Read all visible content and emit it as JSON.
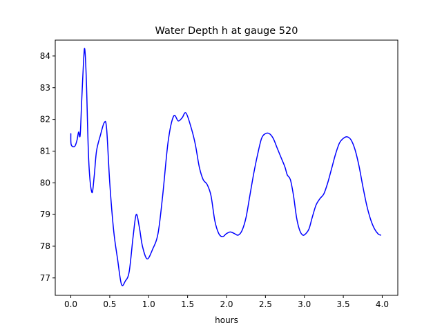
{
  "chart_data": {
    "type": "line",
    "title": "Water Depth h at gauge 520",
    "xlabel": "hours",
    "ylabel": "",
    "xlim": [
      -0.2,
      4.2
    ],
    "ylim": [
      76.45,
      84.5
    ],
    "xticks": [
      0.0,
      0.5,
      1.0,
      1.5,
      2.0,
      2.5,
      3.0,
      3.5,
      4.0
    ],
    "xtick_labels": [
      "0.0",
      "0.5",
      "1.0",
      "1.5",
      "2.0",
      "2.5",
      "3.0",
      "3.5",
      "4.0"
    ],
    "yticks": [
      77,
      78,
      79,
      80,
      81,
      82,
      83,
      84
    ],
    "ytick_labels": [
      "77",
      "78",
      "79",
      "80",
      "81",
      "82",
      "83",
      "84"
    ],
    "grid": false,
    "legend": "none",
    "series": [
      {
        "color": "#0000ff",
        "points": [
          [
            0.0,
            81.55
          ],
          [
            0.005,
            81.2
          ],
          [
            0.05,
            81.15
          ],
          [
            0.08,
            81.35
          ],
          [
            0.1,
            81.6
          ],
          [
            0.12,
            81.5
          ],
          [
            0.14,
            82.6
          ],
          [
            0.165,
            83.9
          ],
          [
            0.18,
            84.2
          ],
          [
            0.2,
            83.2
          ],
          [
            0.23,
            80.7
          ],
          [
            0.27,
            79.7
          ],
          [
            0.3,
            80.2
          ],
          [
            0.33,
            81.0
          ],
          [
            0.38,
            81.5
          ],
          [
            0.43,
            81.9
          ],
          [
            0.46,
            81.7
          ],
          [
            0.5,
            80.0
          ],
          [
            0.55,
            78.5
          ],
          [
            0.6,
            77.6
          ],
          [
            0.65,
            76.8
          ],
          [
            0.7,
            76.9
          ],
          [
            0.75,
            77.2
          ],
          [
            0.8,
            78.3
          ],
          [
            0.84,
            79.0
          ],
          [
            0.88,
            78.6
          ],
          [
            0.92,
            78.0
          ],
          [
            0.98,
            77.6
          ],
          [
            1.05,
            77.9
          ],
          [
            1.12,
            78.4
          ],
          [
            1.18,
            79.6
          ],
          [
            1.25,
            81.3
          ],
          [
            1.32,
            82.1
          ],
          [
            1.38,
            81.95
          ],
          [
            1.43,
            82.05
          ],
          [
            1.48,
            82.2
          ],
          [
            1.55,
            81.7
          ],
          [
            1.6,
            81.2
          ],
          [
            1.65,
            80.5
          ],
          [
            1.7,
            80.1
          ],
          [
            1.75,
            79.95
          ],
          [
            1.8,
            79.6
          ],
          [
            1.85,
            78.8
          ],
          [
            1.9,
            78.4
          ],
          [
            1.95,
            78.3
          ],
          [
            2.0,
            78.4
          ],
          [
            2.05,
            78.45
          ],
          [
            2.1,
            78.4
          ],
          [
            2.15,
            78.35
          ],
          [
            2.2,
            78.5
          ],
          [
            2.25,
            78.9
          ],
          [
            2.3,
            79.6
          ],
          [
            2.35,
            80.3
          ],
          [
            2.4,
            80.9
          ],
          [
            2.45,
            81.4
          ],
          [
            2.5,
            81.55
          ],
          [
            2.55,
            81.55
          ],
          [
            2.6,
            81.4
          ],
          [
            2.65,
            81.1
          ],
          [
            2.7,
            80.8
          ],
          [
            2.75,
            80.5
          ],
          [
            2.78,
            80.25
          ],
          [
            2.82,
            80.1
          ],
          [
            2.86,
            79.6
          ],
          [
            2.9,
            78.9
          ],
          [
            2.94,
            78.5
          ],
          [
            2.98,
            78.35
          ],
          [
            3.02,
            78.4
          ],
          [
            3.06,
            78.55
          ],
          [
            3.1,
            78.9
          ],
          [
            3.15,
            79.3
          ],
          [
            3.2,
            79.5
          ],
          [
            3.25,
            79.65
          ],
          [
            3.3,
            80.0
          ],
          [
            3.35,
            80.45
          ],
          [
            3.4,
            80.9
          ],
          [
            3.45,
            81.25
          ],
          [
            3.5,
            81.4
          ],
          [
            3.55,
            81.45
          ],
          [
            3.6,
            81.35
          ],
          [
            3.65,
            81.05
          ],
          [
            3.7,
            80.55
          ],
          [
            3.75,
            79.9
          ],
          [
            3.8,
            79.3
          ],
          [
            3.85,
            78.85
          ],
          [
            3.9,
            78.55
          ],
          [
            3.95,
            78.38
          ],
          [
            3.98,
            78.35
          ]
        ]
      }
    ]
  }
}
